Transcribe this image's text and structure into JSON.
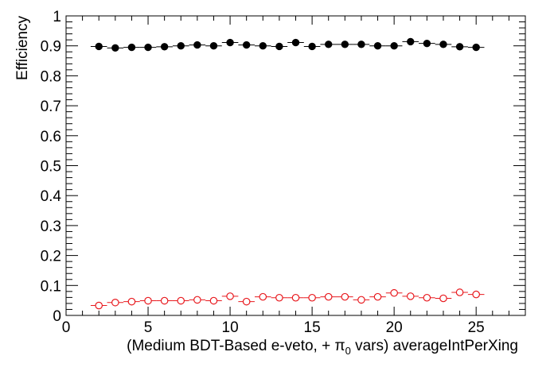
{
  "chart_data": {
    "type": "scatter",
    "xlabel": "(Medium BDT-Based e-veto, +  π₀ vars) averageIntPerXing",
    "xlabel_parts": {
      "before": "(Medium BDT-Based e-veto, +  ",
      "pi": "π",
      "sub": "0",
      "after": " vars) averageIntPerXing"
    },
    "ylabel": "Efficiency",
    "xlim": [
      0,
      28
    ],
    "ylim": [
      0,
      1
    ],
    "x_ticks": [
      0,
      5,
      10,
      15,
      20,
      25
    ],
    "x_tick_labels": [
      "0",
      "5",
      "10",
      "15",
      "20",
      "25"
    ],
    "y_ticks": [
      0,
      0.1,
      0.2,
      0.3,
      0.4,
      0.5,
      0.6,
      0.7,
      0.8,
      0.9,
      1
    ],
    "y_tick_labels": [
      "0",
      "0.1",
      "0.2",
      "0.3",
      "0.4",
      "0.5",
      "0.6",
      "0.7",
      "0.8",
      "0.9",
      "1"
    ],
    "grid": false,
    "series": [
      {
        "marker": "filled-circle",
        "color": "#000000",
        "x": [
          2,
          3,
          4,
          5,
          6,
          7,
          8,
          9,
          10,
          11,
          12,
          13,
          14,
          15,
          16,
          17,
          18,
          19,
          20,
          21,
          22,
          23,
          24,
          25
        ],
        "values": [
          0.898,
          0.893,
          0.895,
          0.895,
          0.897,
          0.9,
          0.903,
          0.9,
          0.911,
          0.903,
          0.9,
          0.898,
          0.911,
          0.898,
          0.905,
          0.905,
          0.905,
          0.9,
          0.9,
          0.914,
          0.908,
          0.905,
          0.897,
          0.895
        ]
      },
      {
        "marker": "open-circle",
        "color": "#e8191e",
        "x": [
          2,
          3,
          4,
          5,
          6,
          7,
          8,
          9,
          10,
          11,
          12,
          13,
          14,
          15,
          16,
          17,
          18,
          19,
          20,
          21,
          22,
          23,
          24,
          25
        ],
        "values": [
          0.033,
          0.043,
          0.046,
          0.049,
          0.049,
          0.049,
          0.052,
          0.049,
          0.064,
          0.046,
          0.062,
          0.059,
          0.059,
          0.059,
          0.062,
          0.062,
          0.052,
          0.062,
          0.075,
          0.064,
          0.059,
          0.057,
          0.077,
          0.07
        ]
      }
    ]
  }
}
